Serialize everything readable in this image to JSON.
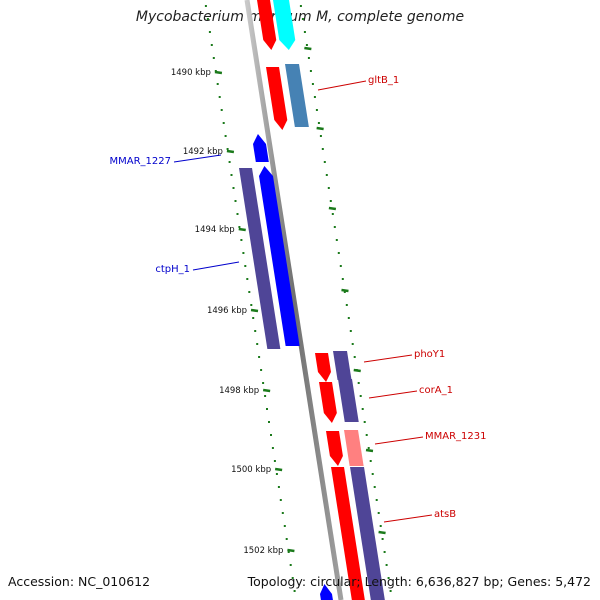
{
  "title": "Mycobacterium marinum M, complete genome",
  "footer": {
    "accession": "Accession: NC_010612",
    "summary": "Topology: circular; Length: 6,636,827 bp; Genes: 5,472"
  },
  "colors": {
    "red": "#ff0000",
    "blue": "#0000ff",
    "indigo": "#4f4597",
    "steel_blue": "#4682b4",
    "cyan": "#00ffff",
    "pink": "#ff8080",
    "tick_green": "#1b7a1b",
    "backbone": "#808080",
    "label_red": "#cc0000",
    "label_blue": "#0000cc"
  },
  "ticks": [
    "1490 kbp",
    "1492 kbp",
    "1494 kbp",
    "1496 kbp",
    "1498 kbp",
    "1500 kbp",
    "1502 kbp"
  ],
  "gene_labels": [
    {
      "name": "gltB_1",
      "color": "label_red"
    },
    {
      "name": "MMAR_1227",
      "color": "label_blue"
    },
    {
      "name": "ctpH_1",
      "color": "label_blue"
    },
    {
      "name": "phoY1",
      "color": "label_red"
    },
    {
      "name": "corA_1",
      "color": "label_red"
    },
    {
      "name": "MMAR_1231",
      "color": "label_red"
    },
    {
      "name": "atsB",
      "color": "label_red"
    }
  ]
}
